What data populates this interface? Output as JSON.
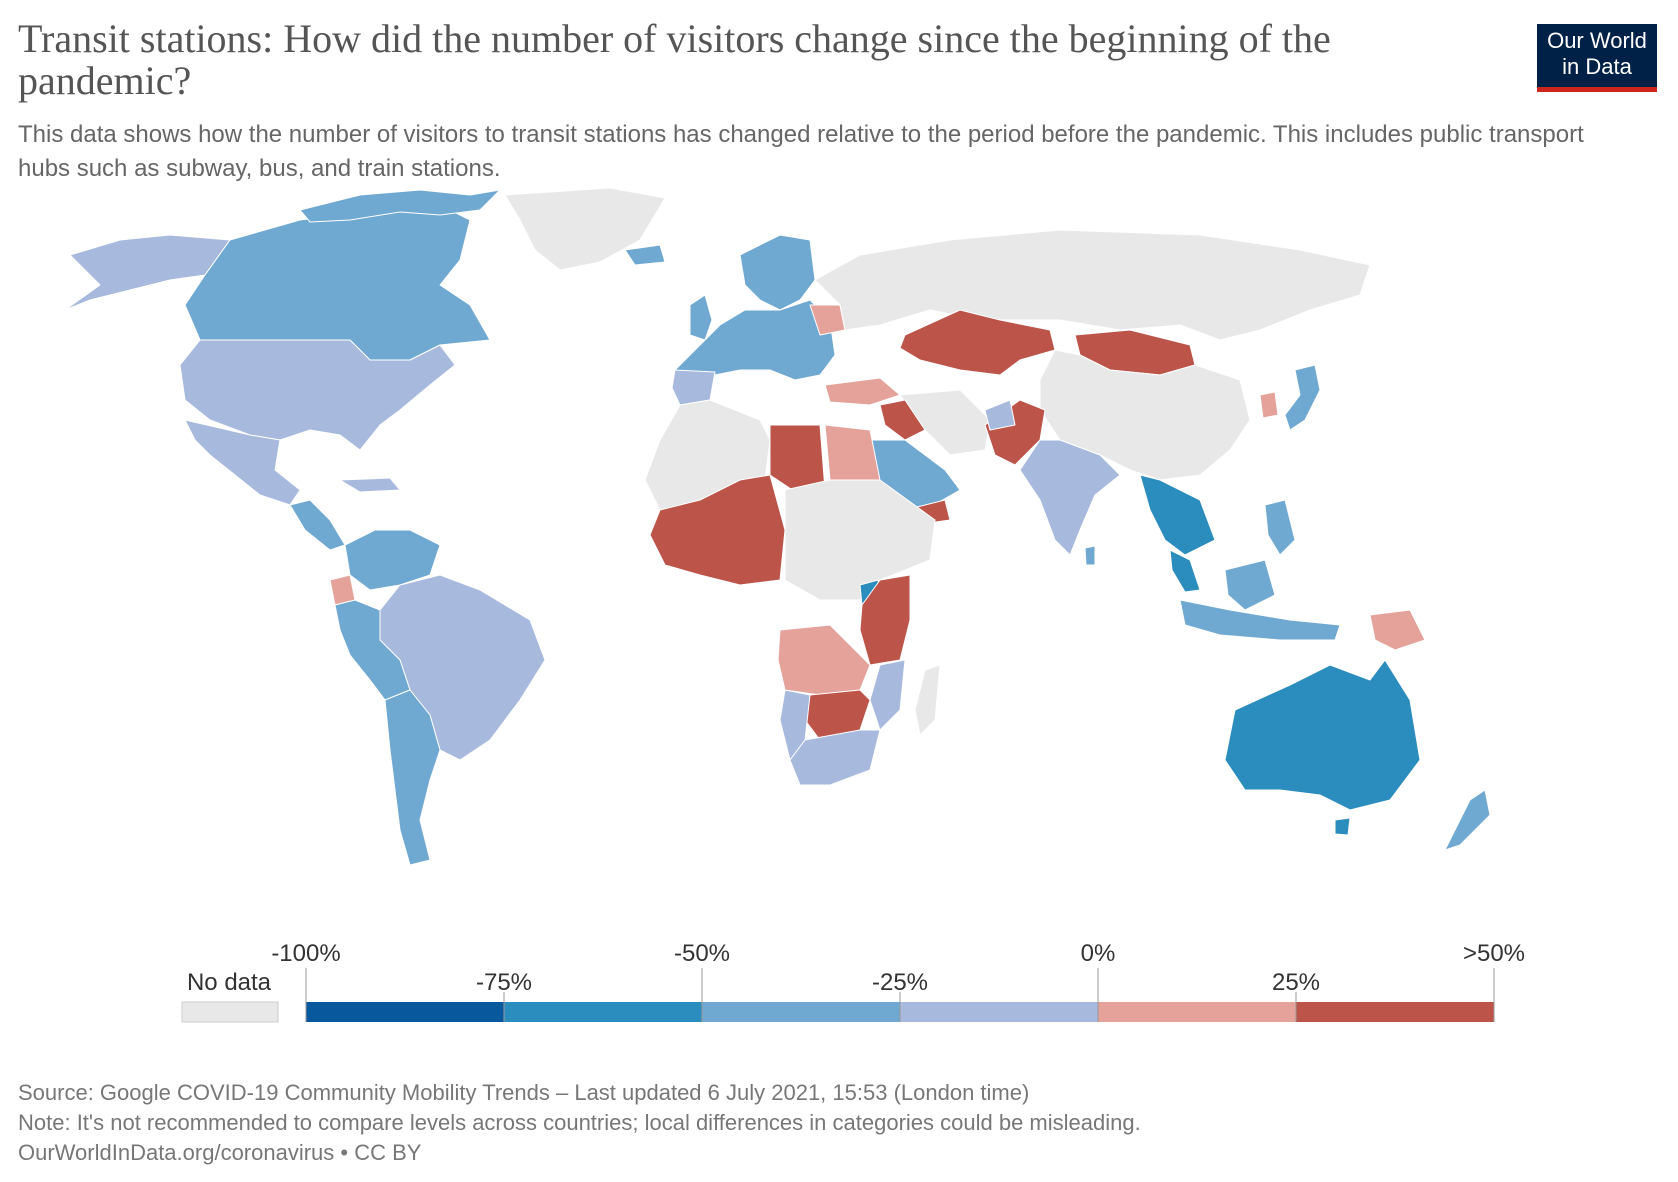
{
  "header": {
    "title": "Transit stations: How did the number of visitors change since the beginning of the pandemic?",
    "subtitle": "This data shows how the number of visitors to transit stations has changed relative to the period before the pandemic. This includes public transport hubs such as subway, bus, and train stations.",
    "logo_line1": "Our World",
    "logo_line2": "in Data"
  },
  "map": {
    "regions": [
      {
        "id": "canada",
        "bin": "-50% to -25%"
      },
      {
        "id": "greenland",
        "bin": "No data"
      },
      {
        "id": "alaska",
        "bin": "-25% to 0%"
      },
      {
        "id": "usa",
        "bin": "-25% to 0%"
      },
      {
        "id": "mexico",
        "bin": "-25% to 0%"
      },
      {
        "id": "central-america",
        "bin": "-50% to -25%"
      },
      {
        "id": "colombia-venezuela",
        "bin": "-50% to -25%"
      },
      {
        "id": "ecuador",
        "bin": "0% to 25%"
      },
      {
        "id": "brazil",
        "bin": "-25% to 0%"
      },
      {
        "id": "peru-bolivia",
        "bin": "-50% to -25%"
      },
      {
        "id": "argentina-chile",
        "bin": "-50% to -25%"
      },
      {
        "id": "europe",
        "bin": "-50% to -25%"
      },
      {
        "id": "scandinavia",
        "bin": "-50% to -25%"
      },
      {
        "id": "russia",
        "bin": "No data"
      },
      {
        "id": "kazakhstan",
        "bin": ">25%"
      },
      {
        "id": "mongolia",
        "bin": ">25%"
      },
      {
        "id": "china",
        "bin": "No data"
      },
      {
        "id": "turkey",
        "bin": "0% to 25%"
      },
      {
        "id": "iraq",
        "bin": ">25%"
      },
      {
        "id": "saudi-arabia",
        "bin": "-50% to -25%"
      },
      {
        "id": "yemen",
        "bin": ">25%"
      },
      {
        "id": "pakistan",
        "bin": ">25%"
      },
      {
        "id": "india",
        "bin": "-25% to 0%"
      },
      {
        "id": "southeast-asia",
        "bin": "-75% to -50%"
      },
      {
        "id": "japan",
        "bin": "-50% to -25%"
      },
      {
        "id": "korea",
        "bin": "0% to 25%"
      },
      {
        "id": "indonesia",
        "bin": "-50% to -25%"
      },
      {
        "id": "png",
        "bin": "0% to 25%"
      },
      {
        "id": "australia",
        "bin": "-75% to -50%"
      },
      {
        "id": "new-zealand",
        "bin": "-50% to -25%"
      },
      {
        "id": "libya",
        "bin": ">25%"
      },
      {
        "id": "egypt",
        "bin": "0% to 25%"
      },
      {
        "id": "west-africa",
        "bin": ">25%"
      },
      {
        "id": "kenya-tanzania",
        "bin": ">25%"
      },
      {
        "id": "angola-zambia",
        "bin": "0% to 25%"
      },
      {
        "id": "zimbabwe-botswana",
        "bin": ">25%"
      },
      {
        "id": "south-africa",
        "bin": "-25% to 0%"
      },
      {
        "id": "north-africa-rest",
        "bin": "No data"
      }
    ]
  },
  "legend": {
    "no_data_label": "No data",
    "ticks": [
      "-100%",
      "-75%",
      "-50%",
      "-25%",
      "0%",
      "25%",
      ">50%"
    ],
    "bins": [
      {
        "from": -100,
        "to": -75,
        "color": "#08589e"
      },
      {
        "from": -75,
        "to": -50,
        "color": "#2b8cbe"
      },
      {
        "from": -50,
        "to": -25,
        "color": "#6fa8d1"
      },
      {
        "from": -25,
        "to": 0,
        "color": "#a7b9dc"
      },
      {
        "from": 0,
        "to": 25,
        "color": "#e4a29a"
      },
      {
        "from": 25,
        "to": 50,
        "color": "#bd5449"
      }
    ],
    "no_data_color": "#e8e8e8"
  },
  "footer": {
    "source": "Source: Google COVID-19 Community Mobility Trends – Last updated 6 July 2021, 15:53 (London time)",
    "note": "Note: It's not recommended to compare levels across countries; local differences in categories could be misleading.",
    "url": "OurWorldInData.org/coronavirus • CC BY"
  }
}
